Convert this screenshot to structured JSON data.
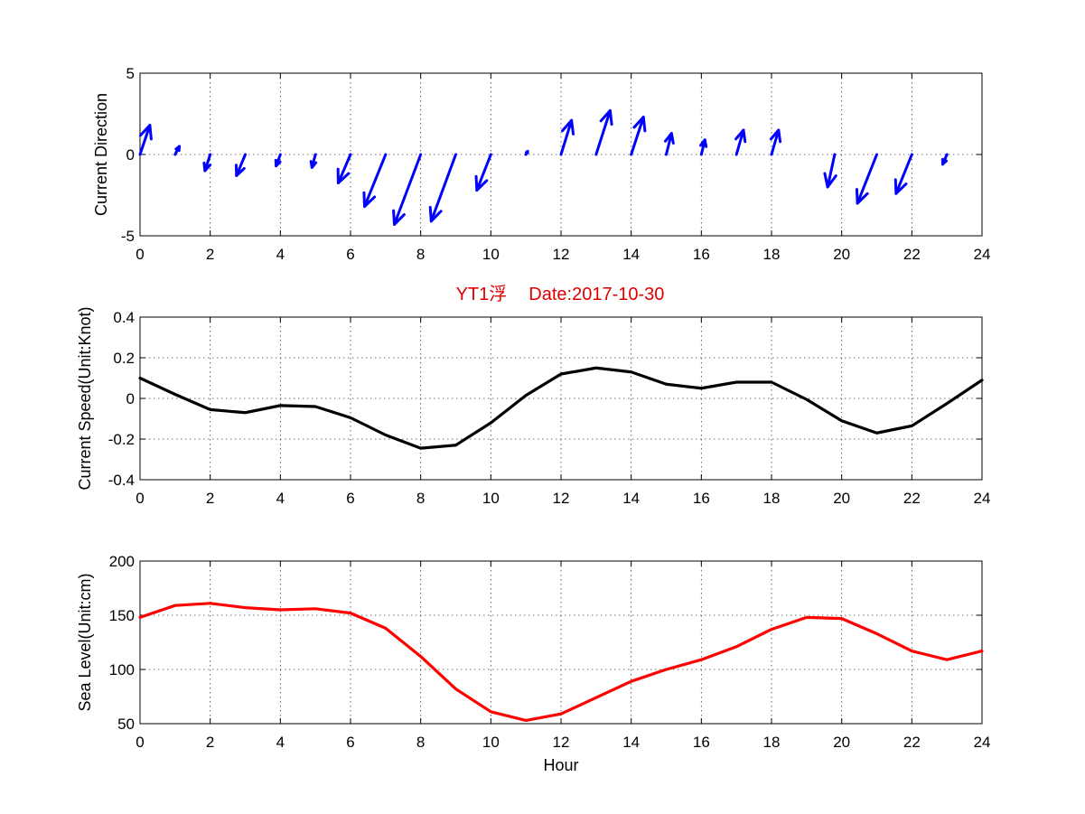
{
  "colors": {
    "arrows": "#0000ff",
    "speed_line": "#000000",
    "sea_level_line": "#ff0000",
    "title": "#e00000"
  },
  "chart_data": [
    {
      "type": "quiver",
      "ylabel": "Current Direction",
      "xlim": [
        0,
        24
      ],
      "ylim": [
        -5,
        5
      ],
      "xticks": [
        0,
        2,
        4,
        6,
        8,
        10,
        12,
        14,
        16,
        18,
        20,
        22,
        24
      ],
      "yticks": [
        -5,
        0,
        5
      ],
      "grid": true,
      "arrows": [
        {
          "x": 0,
          "u": 0.28,
          "v": 1.8
        },
        {
          "x": 1,
          "u": 0.12,
          "v": 0.5
        },
        {
          "x": 2,
          "u": -0.15,
          "v": -1.0
        },
        {
          "x": 3,
          "u": -0.25,
          "v": -1.3
        },
        {
          "x": 4,
          "u": -0.12,
          "v": -0.7
        },
        {
          "x": 5,
          "u": -0.1,
          "v": -0.8
        },
        {
          "x": 6,
          "u": -0.35,
          "v": -1.75
        },
        {
          "x": 7,
          "u": -0.6,
          "v": -3.2
        },
        {
          "x": 8,
          "u": -0.75,
          "v": -4.3
        },
        {
          "x": 9,
          "u": -0.7,
          "v": -4.1
        },
        {
          "x": 10,
          "u": -0.4,
          "v": -2.2
        },
        {
          "x": 11,
          "u": 0.05,
          "v": 0.2
        },
        {
          "x": 12,
          "u": 0.3,
          "v": 2.1
        },
        {
          "x": 13,
          "u": 0.4,
          "v": 2.7
        },
        {
          "x": 14,
          "u": 0.35,
          "v": 2.3
        },
        {
          "x": 15,
          "u": 0.15,
          "v": 1.3
        },
        {
          "x": 16,
          "u": 0.1,
          "v": 0.9
        },
        {
          "x": 17,
          "u": 0.2,
          "v": 1.5
        },
        {
          "x": 18,
          "u": 0.2,
          "v": 1.5
        },
        {
          "x": 19.8,
          "u": -0.2,
          "v": -2.0
        },
        {
          "x": 21,
          "u": -0.55,
          "v": -3.0
        },
        {
          "x": 22,
          "u": -0.45,
          "v": -2.4
        },
        {
          "x": 23,
          "u": -0.12,
          "v": -0.6
        }
      ]
    },
    {
      "type": "line",
      "title_parts": [
        "YT1浮",
        "Date:2017-10-30"
      ],
      "ylabel": "Current Speed(Unit:Knot)",
      "xlim": [
        0,
        24
      ],
      "ylim": [
        -0.4,
        0.4
      ],
      "xticks": [
        0,
        2,
        4,
        6,
        8,
        10,
        12,
        14,
        16,
        18,
        20,
        22,
        24
      ],
      "yticks": [
        -0.4,
        -0.2,
        0,
        0.2,
        0.4
      ],
      "ytick_labels": [
        "-0.4",
        "-0.2",
        "0",
        "0.2",
        "0.4"
      ],
      "grid": true,
      "x": [
        0,
        1,
        2,
        3,
        4,
        5,
        6,
        7,
        8,
        9,
        10,
        11,
        12,
        13,
        14,
        15,
        16,
        17,
        18,
        19,
        20,
        21,
        22,
        23,
        24
      ],
      "y": [
        0.1,
        0.02,
        -0.055,
        -0.07,
        -0.035,
        -0.04,
        -0.095,
        -0.18,
        -0.245,
        -0.23,
        -0.12,
        0.015,
        0.12,
        0.15,
        0.13,
        0.07,
        0.05,
        0.08,
        0.08,
        -0.005,
        -0.11,
        -0.17,
        -0.135,
        -0.025,
        0.09
      ]
    },
    {
      "type": "line",
      "ylabel": "Sea Level(Unit:cm)",
      "xlabel": "Hour",
      "xlim": [
        0,
        24
      ],
      "ylim": [
        50,
        200
      ],
      "xticks": [
        0,
        2,
        4,
        6,
        8,
        10,
        12,
        14,
        16,
        18,
        20,
        22,
        24
      ],
      "yticks": [
        50,
        100,
        150,
        200
      ],
      "grid": true,
      "x": [
        0,
        1,
        2,
        3,
        4,
        5,
        6,
        7,
        8,
        9,
        10,
        11,
        12,
        13,
        14,
        15,
        16,
        17,
        18,
        19,
        20,
        21,
        22,
        23,
        24
      ],
      "y": [
        148,
        159,
        161,
        157,
        155,
        156,
        152,
        138,
        112,
        82,
        61,
        53,
        59,
        74,
        89,
        100,
        109,
        121,
        137,
        148,
        147,
        133,
        117,
        109,
        117
      ]
    }
  ]
}
